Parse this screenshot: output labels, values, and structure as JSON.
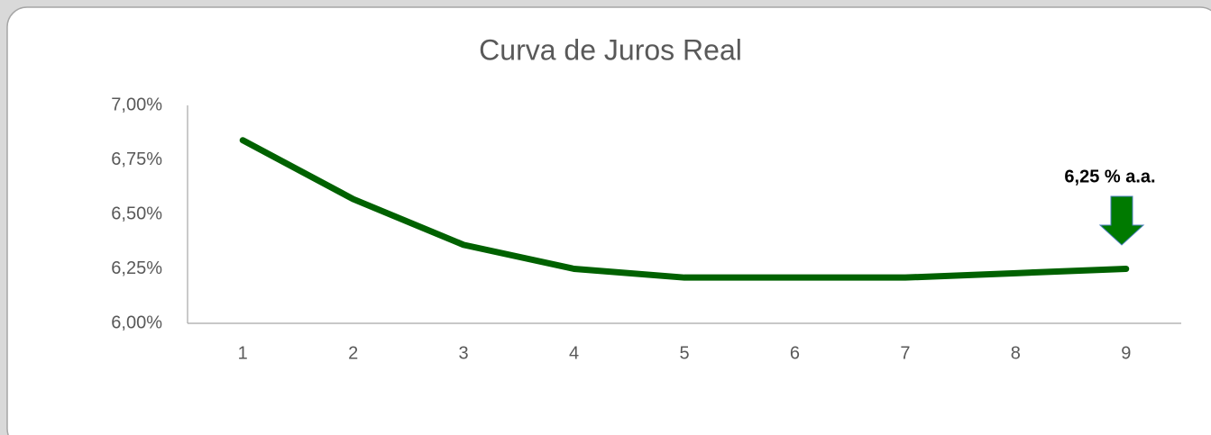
{
  "chart_data": {
    "type": "line",
    "title": "Curva de Juros Real",
    "categories": [
      "1",
      "2",
      "3",
      "4",
      "5",
      "6",
      "7",
      "8",
      "9"
    ],
    "series": [
      {
        "name": "Curva de Juros Real",
        "color": "#006100",
        "values": [
          6.84,
          6.57,
          6.36,
          6.25,
          6.21,
          6.21,
          6.21,
          6.23,
          6.25
        ]
      }
    ],
    "ylim": [
      6,
      7
    ],
    "yticks": [
      {
        "value": 6,
        "label": "6,00%"
      },
      {
        "value": 6.25,
        "label": "6,25%"
      },
      {
        "value": 6.5,
        "label": "6,50%"
      },
      {
        "value": 6.75,
        "label": "6,75%"
      },
      {
        "value": 7,
        "label": "7,00%"
      }
    ],
    "annotation": "6,25 % a.a.",
    "grid": false,
    "legend": false
  }
}
